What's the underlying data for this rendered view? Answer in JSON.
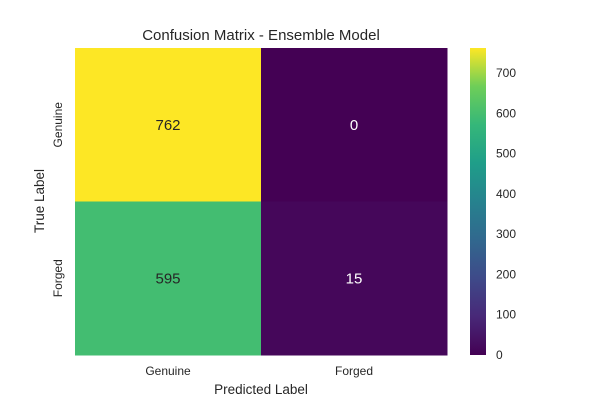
{
  "chart_data": {
    "type": "heatmap",
    "title": "Confusion Matrix - Ensemble Model",
    "xlabel": "Predicted Label",
    "ylabel": "True Label",
    "x_categories": [
      "Genuine",
      "Forged"
    ],
    "y_categories": [
      "Genuine",
      "Forged"
    ],
    "values": [
      [
        762,
        0
      ],
      [
        595,
        15
      ]
    ],
    "colormap": "viridis",
    "colorbar": {
      "min": 0,
      "max": 762,
      "ticks": [
        0,
        100,
        200,
        300,
        400,
        500,
        600,
        700
      ]
    },
    "grid": false
  }
}
